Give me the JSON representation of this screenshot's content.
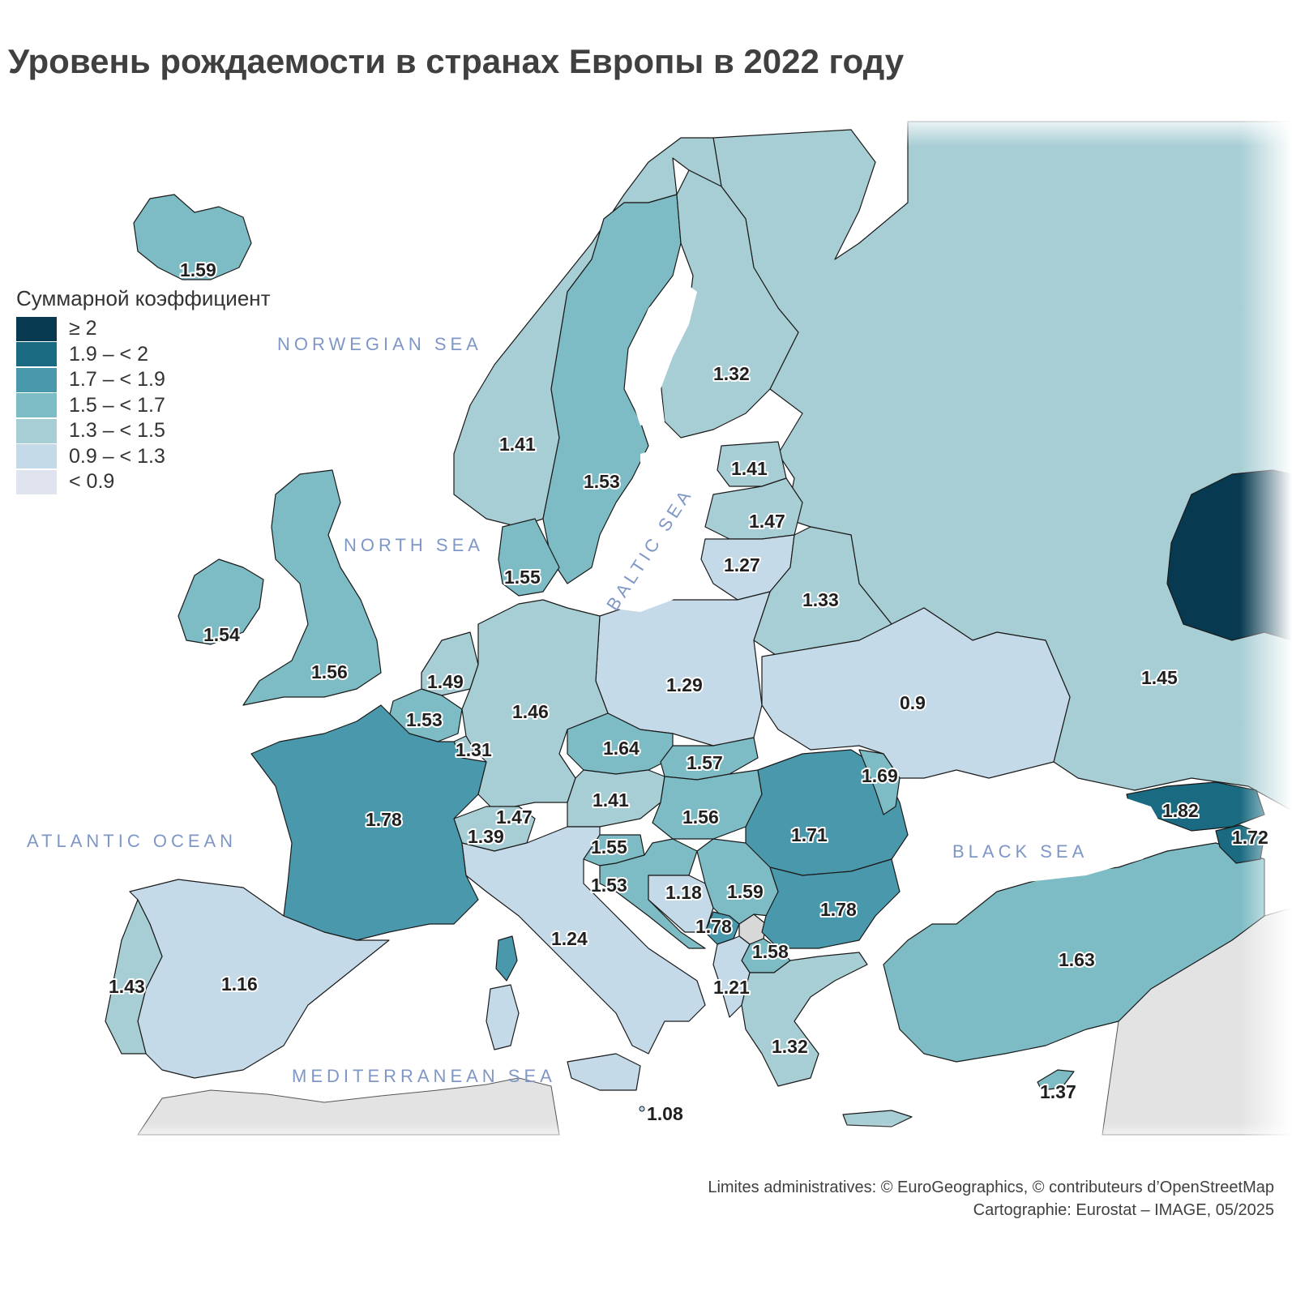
{
  "title": "Уровень рождаемости в странах Европы в 2022 году",
  "legend": {
    "title": "Суммарной коэффициент",
    "classes": [
      {
        "label": "≥ 2",
        "color": "#073a50"
      },
      {
        "label": "1.9 – < 2",
        "color": "#1a6b82"
      },
      {
        "label": "1.7 – < 1.9",
        "color": "#4a98ab"
      },
      {
        "label": "1.5 – < 1.7",
        "color": "#7dbcc4"
      },
      {
        "label": "1.3 – < 1.5",
        "color": "#a8ced5"
      },
      {
        "label": "0.9 – < 1.3",
        "color": "#c5dae8"
      },
      {
        "label": "< 0.9",
        "color": "#dfe4ee"
      }
    ]
  },
  "seas": {
    "norwegian": "NORWEGIAN SEA",
    "north": "NORTH SEA",
    "baltic": "BALTIC SEA",
    "atlantic": "ATLANTIC OCEAN",
    "mediterranean": "MEDITERRANEAN SEA",
    "black": "BLACK SEA"
  },
  "regions": {
    "iceland": "1.59",
    "norway": "1.41",
    "sweden": "1.53",
    "finland": "1.32",
    "estonia": "1.41",
    "latvia": "1.47",
    "lithuania": "1.27",
    "belarus": "1.33",
    "russia": "1.45",
    "ukraine": "0.9",
    "poland": "1.29",
    "denmark": "1.55",
    "ireland": "1.54",
    "uk": "1.56",
    "netherlands": "1.49",
    "belgium": "1.53",
    "luxembourg": "1.31",
    "germany": "1.46",
    "czechia": "1.64",
    "slovakia": "1.57",
    "austria": "1.41",
    "hungary": "1.56",
    "moldova": "1.69",
    "romania": "1.71",
    "liechtenstein": "1.47",
    "switzerland": "1.39",
    "slovenia": "1.55",
    "croatia": "1.53",
    "bosnia": "1.18",
    "serbia": "1.59",
    "montenegro": "1.78",
    "bulgaria": "1.78",
    "north_macedonia": "1.58",
    "albania": "1.21",
    "greece": "1.32",
    "turkey": "1.63",
    "cyprus": "1.37",
    "malta": "1.08",
    "italy": "1.24",
    "france": "1.78",
    "spain": "1.16",
    "portugal": "1.43",
    "georgia": "1.82",
    "armenia": "1.72"
  },
  "credits": {
    "line1": "Limites administratives: © EuroGeographics, © contributeurs d’OpenStreetMap",
    "line2": "Cartographie: Eurostat – IMAGE, 05/2025"
  }
}
